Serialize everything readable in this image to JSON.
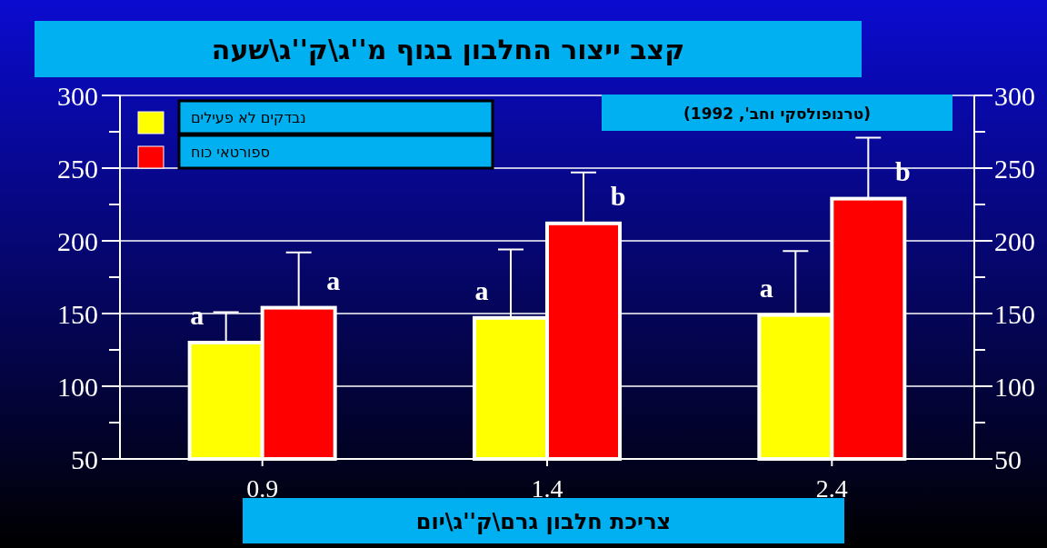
{
  "chart_data": {
    "type": "bar",
    "title": "קצב ייצור החלבון בגוף מ''ג\\ק''ג\\שעה",
    "xlabel": "צריכת חלבון גרם\\ק''ג\\יום",
    "categories": [
      "0.9",
      "1.4",
      "2.4"
    ],
    "series": [
      {
        "name": "נבדקים לא פעילים",
        "color": "#ffff00",
        "values": [
          130,
          147,
          149
        ],
        "errors": [
          [
            130,
            151
          ],
          [
            147,
            194
          ],
          [
            149,
            193
          ]
        ]
      },
      {
        "name": "ספורטאי כוח",
        "color": "#ff0000",
        "values": [
          154,
          212,
          229
        ],
        "errors": [
          [
            154,
            192
          ],
          [
            212,
            247
          ],
          [
            229,
            271
          ]
        ]
      }
    ],
    "ylim": [
      50,
      300
    ],
    "yticks": [
      50,
      {
        "value": 75,
        "label": null
      },
      100,
      {
        "value": 125,
        "label": null
      },
      150,
      {
        "value": 175,
        "label": null
      },
      200,
      {
        "value": 225,
        "label": null
      },
      250,
      {
        "value": 275,
        "label": null
      },
      300
    ],
    "y2lim": [
      50,
      300
    ],
    "y2ticks": [
      50,
      {
        "value": 75,
        "label": null
      },
      100,
      {
        "value": 125,
        "label": null
      },
      150,
      {
        "value": 175,
        "label": null
      },
      200,
      {
        "value": 225,
        "label": null
      },
      250,
      {
        "value": 275,
        "label": null
      },
      300
    ],
    "grid": "y",
    "legend": "top left",
    "annotations": [
      "(טרנופולסקי וחב', 1992)",
      {
        "text": "a",
        "x": "0.9",
        "y": 130
      },
      {
        "text": "a",
        "x": "0.9",
        "y": 154
      },
      {
        "text": "a",
        "x": "1.4",
        "y": 147
      },
      {
        "text": "b",
        "x": "1.4",
        "y": 212
      },
      {
        "text": "a",
        "x": "2.4",
        "y": 149
      },
      {
        "text": "b",
        "x": "2.4",
        "y": 229
      }
    ]
  }
}
